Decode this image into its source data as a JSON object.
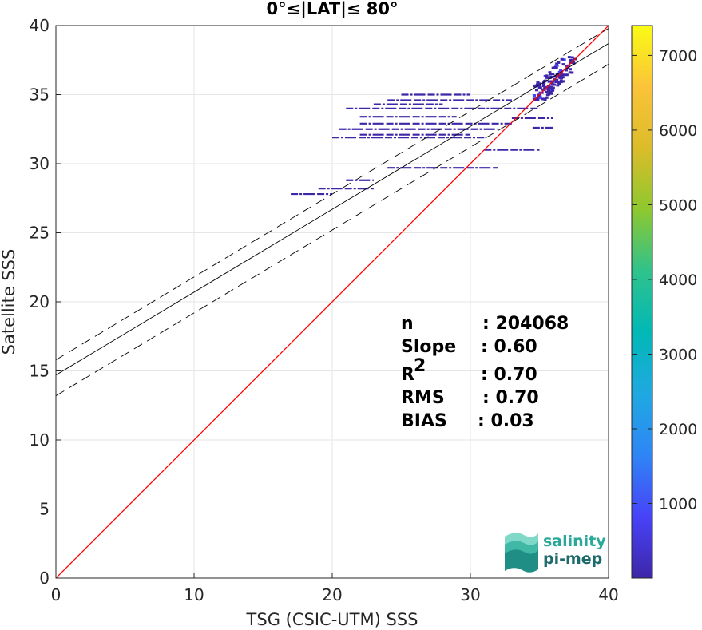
{
  "chart_data": {
    "type": "scatter",
    "title": "0°≤|LAT|≤ 80°",
    "xlabel": "TSG (CSIC-UTM) SSS",
    "ylabel": "Satellite SSS",
    "xlim": [
      0,
      40
    ],
    "ylim": [
      0,
      40
    ],
    "xticks": [
      "0",
      "10",
      "20",
      "30",
      "40"
    ],
    "yticks": [
      "0",
      "5",
      "10",
      "15",
      "20",
      "25",
      "30",
      "35",
      "40"
    ],
    "grid": true,
    "colorbar": {
      "range": [
        0,
        7400
      ],
      "ticks": [
        "1000",
        "2000",
        "3000",
        "4000",
        "5000",
        "6000",
        "7000"
      ],
      "colormap": [
        "#3e26a8",
        "#4743f8",
        "#2f85f5",
        "#1fa9e1",
        "#01b8b6",
        "#2fc28c",
        "#8ec82f",
        "#dbbc2a",
        "#fbc33a",
        "#fafb14"
      ]
    },
    "lines": {
      "identity": {
        "intercept": 0,
        "slope": 1,
        "color": "#ff0000"
      },
      "fit": {
        "intercept": 14.7,
        "slope": 0.6,
        "color": "#000000"
      },
      "fit_upper": {
        "intercept": 15.8,
        "slope": 0.6
      },
      "fit_lower": {
        "intercept": 13.2,
        "slope": 0.6
      }
    },
    "stats": [
      {
        "label": "n",
        "value": ": 204068"
      },
      {
        "label": "Slope",
        "value": ": 0.60"
      },
      {
        "label": "R",
        "sup": "2",
        "value": ": 0.70"
      },
      {
        "label": "RMS",
        "value": ": 0.70"
      },
      {
        "label": "BIAS",
        "value": ": 0.03"
      }
    ],
    "density_segments": [
      {
        "x0": 17.0,
        "x1": 20.0,
        "y": 27.8
      },
      {
        "x0": 19.0,
        "x1": 23.0,
        "y": 28.2
      },
      {
        "x0": 24.0,
        "x1": 32.0,
        "y": 29.7
      },
      {
        "x0": 21.0,
        "x1": 23.0,
        "y": 28.8
      },
      {
        "x0": 20.0,
        "x1": 31.0,
        "y": 31.9
      },
      {
        "x0": 22.0,
        "x1": 30.0,
        "y": 32.1
      },
      {
        "x0": 20.5,
        "x1": 32.0,
        "y": 32.5
      },
      {
        "x0": 22.0,
        "x1": 33.0,
        "y": 32.9
      },
      {
        "x0": 22.0,
        "x1": 29.0,
        "y": 33.4
      },
      {
        "x0": 21.0,
        "x1": 35.0,
        "y": 34.0
      },
      {
        "x0": 23.0,
        "x1": 28.0,
        "y": 34.3
      },
      {
        "x0": 24.0,
        "x1": 33.0,
        "y": 34.6
      },
      {
        "x0": 25.0,
        "x1": 30.0,
        "y": 35.0
      },
      {
        "x0": 31.0,
        "x1": 35.0,
        "y": 31.0
      },
      {
        "x0": 33.0,
        "x1": 36.0,
        "y": 33.3
      },
      {
        "x0": 34.5,
        "x1": 36.0,
        "y": 32.6
      }
    ],
    "density_cluster": {
      "x": [
        34.5,
        37.5
      ],
      "y": [
        34.5,
        37.5
      ]
    }
  },
  "logo": {
    "line1": "salinity",
    "line2": "pi-mep"
  }
}
